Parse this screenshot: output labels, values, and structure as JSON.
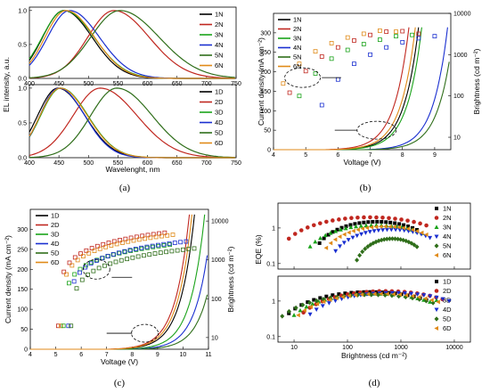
{
  "colors": {
    "1": "#000000",
    "2": "#c0271f",
    "3": "#1aa31a",
    "4": "#1a2fd0",
    "5": "#2f6e1a",
    "6": "#e08a18"
  },
  "chart_data": [
    {
      "panel": "(a)",
      "type": "line",
      "subplots": [
        {
          "legend": [
            "1N",
            "2N",
            "3N",
            "4N",
            "5N",
            "6N"
          ],
          "xlim": [
            400,
            750
          ],
          "series": [
            {
              "name": "1N",
              "peak": 458,
              "width": 42,
              "values_shape": "gaussian"
            },
            {
              "name": "2N",
              "peak": 543,
              "width": 52,
              "values_shape": "gaussian"
            },
            {
              "name": "3N",
              "peak": 459,
              "width": 44,
              "values_shape": "gaussian"
            },
            {
              "name": "4N",
              "peak": 468,
              "width": 44,
              "values_shape": "gaussian"
            },
            {
              "name": "5N",
              "peak": 553,
              "width": 58,
              "values_shape": "gaussian"
            },
            {
              "name": "6N",
              "peak": 462,
              "width": 42,
              "values_shape": "gaussian"
            }
          ]
        },
        {
          "legend": [
            "1D",
            "2D",
            "3D",
            "4D",
            "5D",
            "6D"
          ],
          "xlim": [
            400,
            750
          ],
          "series": [
            {
              "name": "1D",
              "peak": 448,
              "width": 40
            },
            {
              "name": "2D",
              "peak": 520,
              "width": 54
            },
            {
              "name": "3D",
              "peak": 453,
              "width": 40
            },
            {
              "name": "4D",
              "peak": 450,
              "width": 38
            },
            {
              "name": "5D",
              "peak": 548,
              "width": 52
            },
            {
              "name": "6D",
              "peak": 452,
              "width": 40
            }
          ]
        }
      ],
      "shared_ylabel": "EL intensity, a.u.",
      "xlabel": "Wavelenght, nm",
      "xticks": [
        400,
        450,
        500,
        550,
        600,
        650,
        700,
        750
      ]
    },
    {
      "panel": "(b)",
      "type": "line+scatter",
      "xlabel": "Voltage (V)",
      "ylabel": "Current density (mA cm⁻²)",
      "y2label": "Brightness (cd m⁻²)",
      "xlim": [
        4,
        9.5
      ],
      "ylim": [
        0,
        350
      ],
      "y2lim_log": [
        5,
        10000
      ],
      "xticks": [
        4,
        5,
        6,
        7,
        8,
        9
      ],
      "yticks": [
        0,
        50,
        100,
        150,
        200,
        250,
        300
      ],
      "y2ticks": [
        "10",
        "100",
        "1000",
        "10000"
      ],
      "legend": [
        "1N",
        "2N",
        "3N",
        "4N",
        "5N",
        "6N"
      ],
      "current_onset": {
        "1N": 6.2,
        "2N": 5.9,
        "3N": 6.3,
        "4N": 7.1,
        "5N": 7.3,
        "6N": 6.1
      },
      "brightness_points": {
        "2N": [
          [
            4.5,
            120
          ],
          [
            5,
            400
          ],
          [
            5.5,
            900
          ],
          [
            6,
            1500
          ],
          [
            6.5,
            2200
          ],
          [
            7,
            3000
          ],
          [
            7.5,
            3600
          ],
          [
            8,
            3700
          ],
          [
            8.5,
            3200
          ]
        ],
        "6N": [
          [
            4.3,
            200
          ],
          [
            4.8,
            600
          ],
          [
            5.3,
            1200
          ],
          [
            5.8,
            1900
          ],
          [
            6.3,
            2600
          ],
          [
            6.8,
            3200
          ],
          [
            7.3,
            3800
          ],
          [
            7.8,
            3600
          ]
        ],
        "3N": [
          [
            4.8,
            100
          ],
          [
            5.3,
            350
          ],
          [
            5.8,
            800
          ],
          [
            6.3,
            1300
          ],
          [
            6.8,
            1800
          ],
          [
            7.3,
            2300
          ],
          [
            7.8,
            2800
          ],
          [
            8.3,
            3000
          ]
        ],
        "4N": [
          [
            5.5,
            60
          ],
          [
            6,
            250
          ],
          [
            6.5,
            600
          ],
          [
            7,
            1000
          ],
          [
            7.5,
            1500
          ],
          [
            8,
            2000
          ],
          [
            8.5,
            2500
          ],
          [
            9,
            2800
          ]
        ]
      }
    },
    {
      "panel": "(c)",
      "type": "line+scatter",
      "xlabel": "Voltage (V)",
      "ylabel": "Current density (mA cm⁻²)",
      "y2label": "Brightness (cd m⁻²)",
      "xlim": [
        4,
        11
      ],
      "ylim": [
        0,
        350
      ],
      "xticks": [
        4,
        5,
        6,
        7,
        8,
        9,
        10,
        11
      ],
      "yticks": [
        0,
        50,
        100,
        150,
        200,
        250,
        300
      ],
      "y2ticks": [
        "10",
        "100",
        "1000",
        "10000"
      ],
      "legend": [
        "1D",
        "2D",
        "3D",
        "4D",
        "5D",
        "6D"
      ]
    },
    {
      "panel": "(d)",
      "type": "scatter",
      "xlabel": "Brightness (cd m⁻²)",
      "ylabel": "EQE (%)",
      "xlim_log": [
        5,
        20000
      ],
      "xticks": [
        "10",
        "100",
        "1000",
        "10000"
      ],
      "yticks": [
        "0.1",
        "1"
      ],
      "legend_top": [
        "1N",
        "2N",
        "3N",
        "4N",
        "5N",
        "6N"
      ],
      "legend_bottom": [
        "1D",
        "2D",
        "3D",
        "4D",
        "5D",
        "6D"
      ]
    }
  ],
  "text": {
    "a_x": "Wavelenght, nm",
    "a_y": "EL intensity, a.u.",
    "b_x": "Voltage (V)",
    "b_y": "Current density (mA cm",
    "b_y2": "Brightness (cd m",
    "c_x": "Voltage (V)",
    "d_x": "Brightness (cd m",
    "d_y": "EQE (%)",
    "pa": "(a)",
    "pb": "(b)",
    "pc": "(c)",
    "pd": "(d)"
  }
}
